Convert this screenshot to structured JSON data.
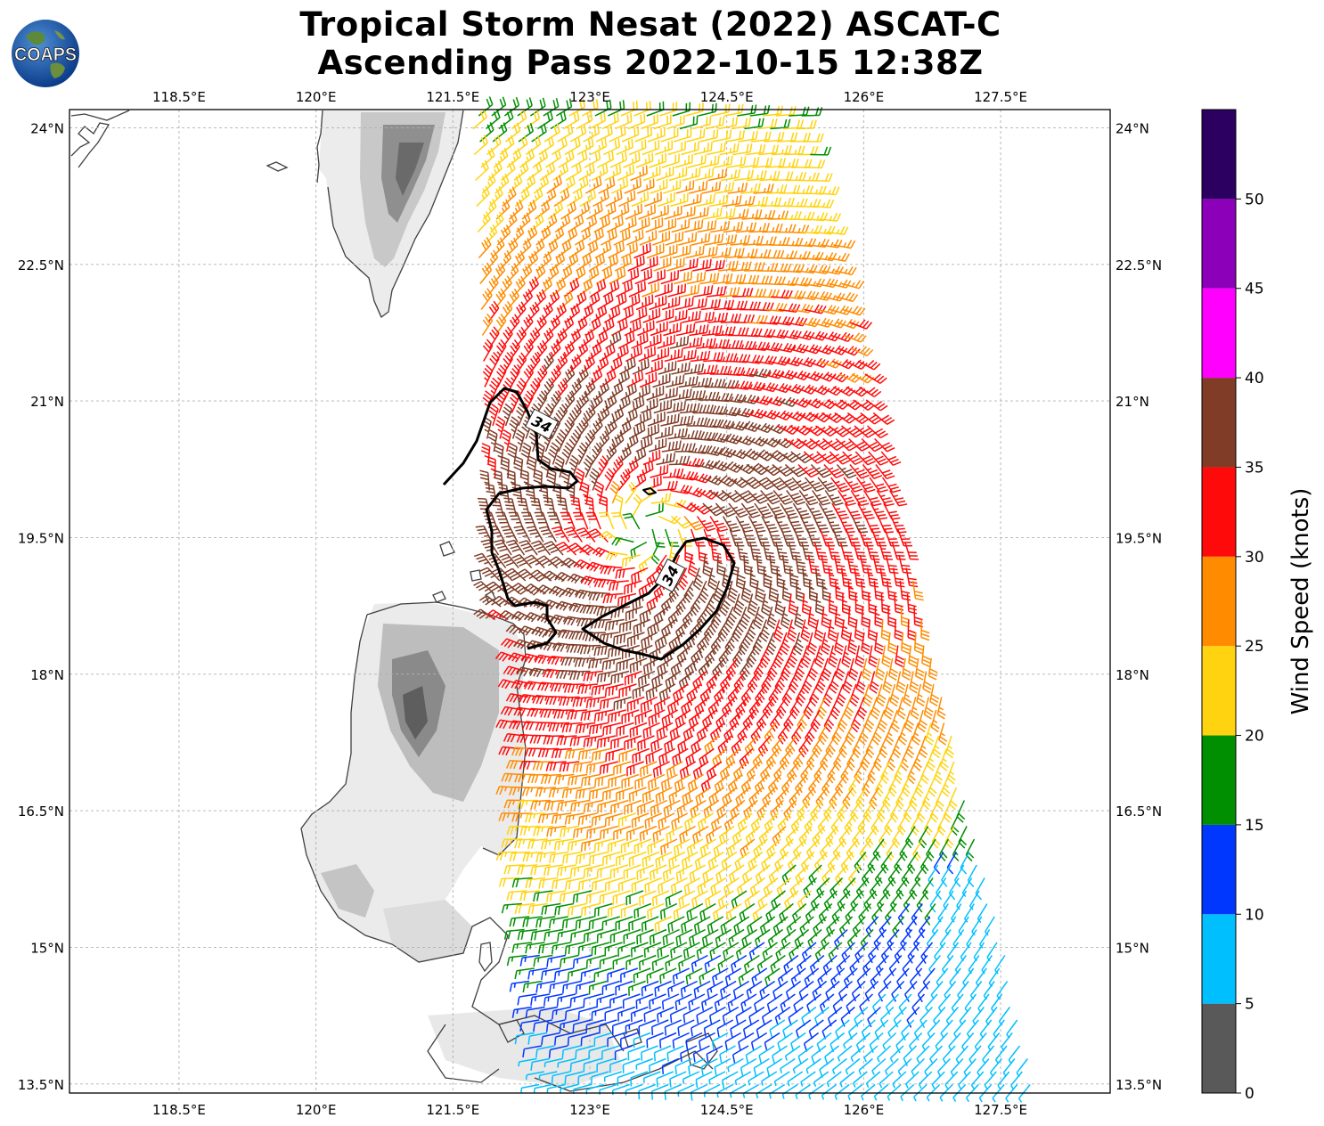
{
  "title": {
    "line1": "Tropical Storm Nesat (2022) ASCAT-C",
    "line2": "Ascending Pass 2022-10-15 12:38Z"
  },
  "logo": {
    "text": "COAPS",
    "icon": "globe-logo-icon"
  },
  "map": {
    "lon_ticks": [
      "118.5°E",
      "120°E",
      "121.5°E",
      "123°E",
      "124.5°E",
      "126°E",
      "127.5°E"
    ],
    "lat_ticks": [
      "24°N",
      "22.5°N",
      "21°N",
      "19.5°N",
      "18°N",
      "16.5°N",
      "15°N",
      "13.5°N"
    ],
    "lon_range": [
      117.3,
      128.7
    ],
    "lat_range": [
      13.4,
      24.2
    ],
    "gridlines": true,
    "contour_labels": [
      "34",
      "34"
    ],
    "contour_value_knots": 34
  },
  "colorbar": {
    "label": "Wind Speed (knots)",
    "ticks": [
      "0",
      "5",
      "10",
      "15",
      "20",
      "25",
      "30",
      "35",
      "40",
      "45",
      "50"
    ],
    "bins": [
      {
        "range": [
          0,
          5
        ],
        "color": "#595959"
      },
      {
        "range": [
          5,
          10
        ],
        "color": "#00bfff"
      },
      {
        "range": [
          10,
          15
        ],
        "color": "#0037ff"
      },
      {
        "range": [
          15,
          20
        ],
        "color": "#008f00"
      },
      {
        "range": [
          20,
          25
        ],
        "color": "#ffd30f"
      },
      {
        "range": [
          25,
          30
        ],
        "color": "#ff8c00"
      },
      {
        "range": [
          30,
          35
        ],
        "color": "#ff0a0a"
      },
      {
        "range": [
          35,
          40
        ],
        "color": "#803c26"
      },
      {
        "range": [
          40,
          45
        ],
        "color": "#ff00ff"
      },
      {
        "range": [
          45,
          50
        ],
        "color": "#8b00b8"
      },
      {
        "range": [
          50,
          55
        ],
        "color": "#2b0061"
      }
    ]
  },
  "storm_center": {
    "lon": 123.6,
    "lat": 19.6
  }
}
